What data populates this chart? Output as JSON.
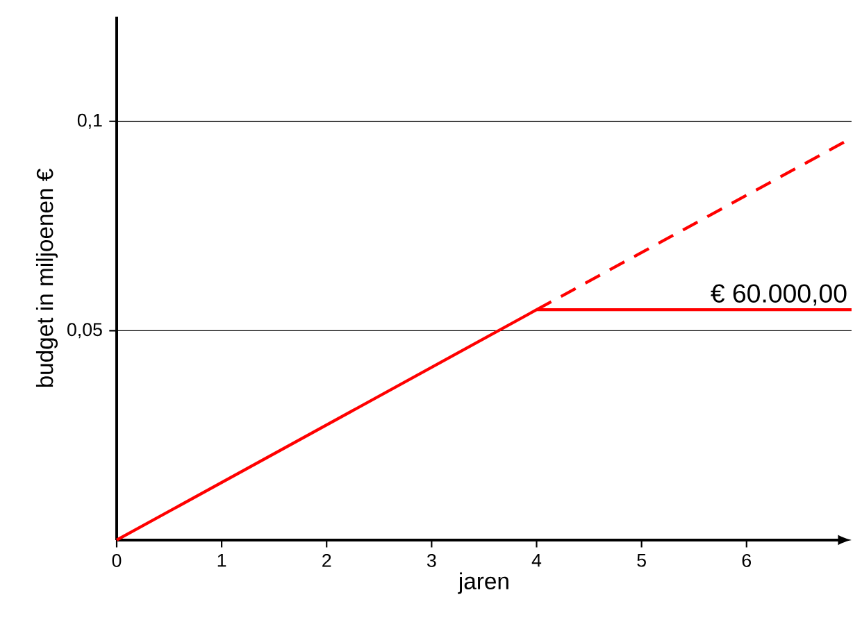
{
  "chart_data": {
    "type": "line",
    "xlabel": "jaren",
    "ylabel": "budget in miljoenen €",
    "xlim": [
      0,
      7
    ],
    "ylim": [
      0,
      0.125
    ],
    "xticks": [
      0,
      1,
      2,
      3,
      4,
      5,
      6
    ],
    "yticks": [
      {
        "value": 0.05,
        "label": "0,05"
      },
      {
        "value": 0.1,
        "label": "0,1"
      }
    ],
    "grid": "y",
    "series": [
      {
        "x": [
          0,
          4,
          7
        ],
        "values": [
          0,
          0.055,
          0.055
        ],
        "color": "#ff0000",
        "line_style": "solid"
      },
      {
        "x": [
          4,
          7
        ],
        "values": [
          0.055,
          0.096
        ],
        "color": "#ff0000",
        "line_style": "dashed"
      }
    ],
    "annotations": [
      {
        "text": "€ 60.000,00",
        "x": 7,
        "y": 0.055
      }
    ]
  }
}
